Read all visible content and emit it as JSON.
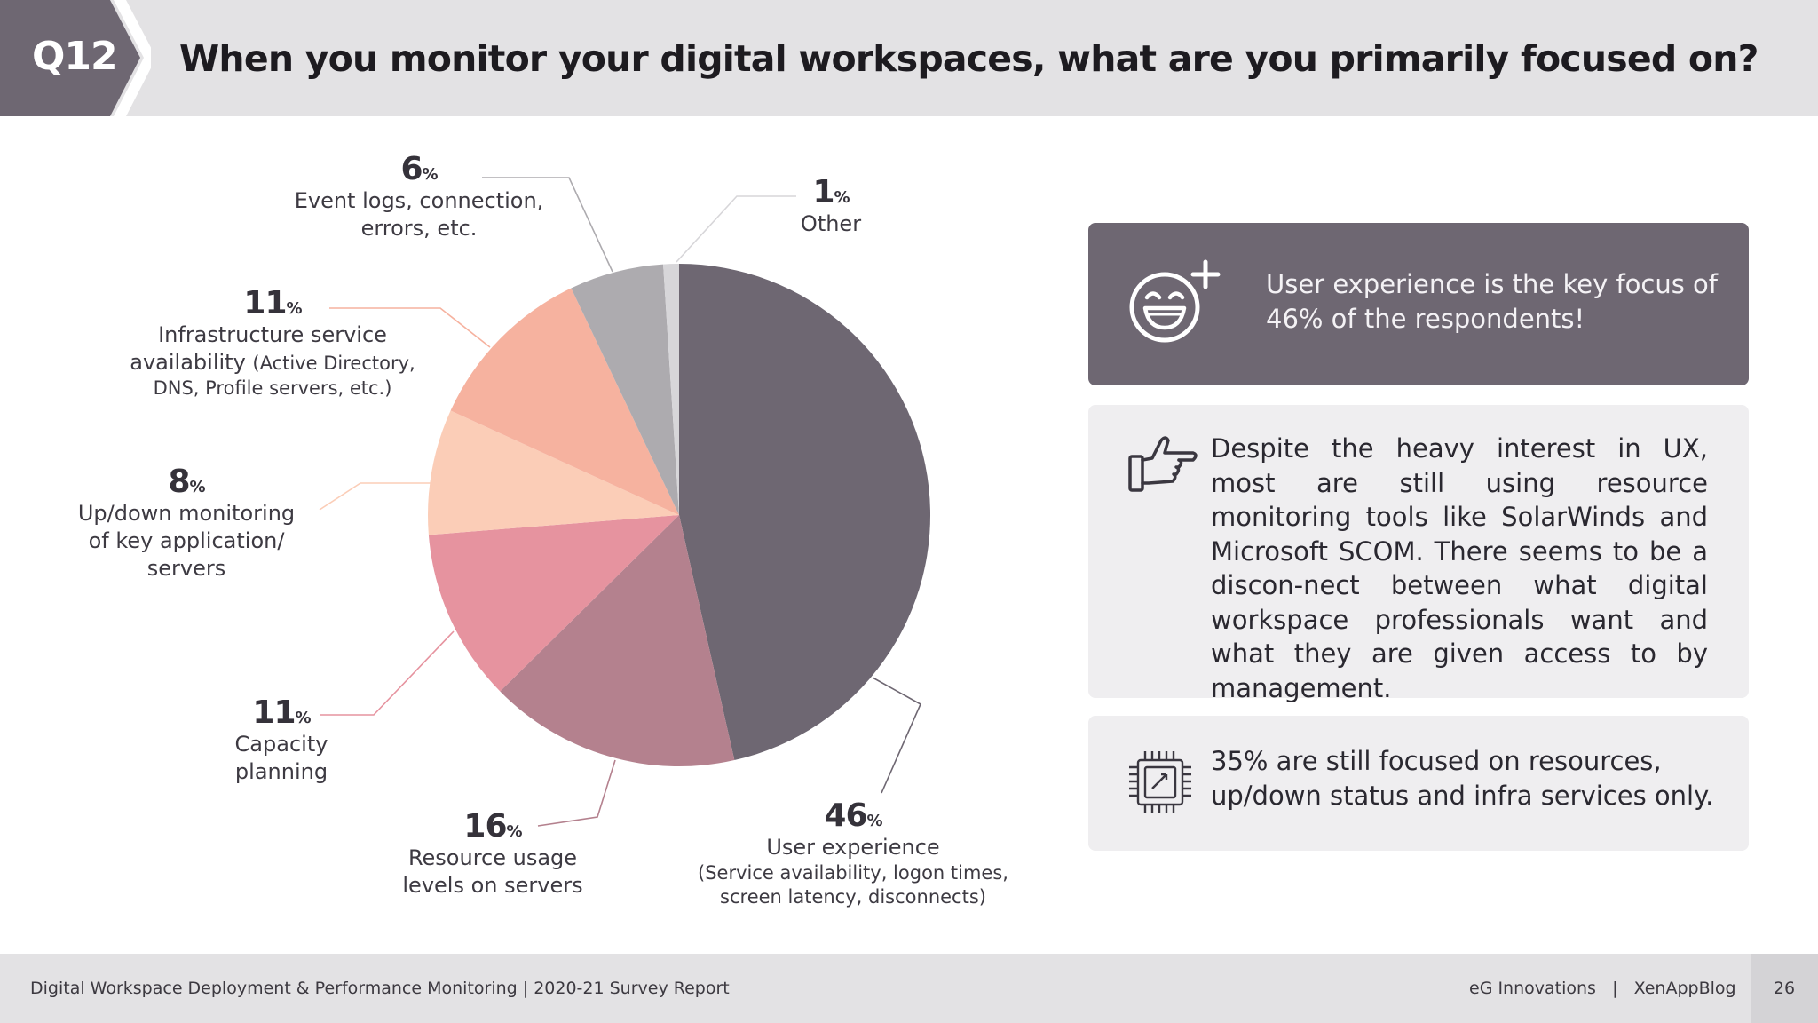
{
  "header": {
    "question": "Q12",
    "title": "When you monitor your digital workspaces, what are you primarily focused on?"
  },
  "chart_data": {
    "type": "pie",
    "title": "When you monitor your digital workspaces, what are you primarily focused on?",
    "unit": "%",
    "slices": [
      {
        "label": "User experience",
        "detail": "(Service availability, logon times, screen latency, disconnects)",
        "value": 46,
        "color": "#6e6772"
      },
      {
        "label": "Resource usage levels on servers",
        "value": 16,
        "color": "#b4818e"
      },
      {
        "label": "Capacity planning",
        "value": 11,
        "color": "#e6939f"
      },
      {
        "label": "Up/down monitoring of key application/ servers",
        "value": 8,
        "color": "#fbcdb7"
      },
      {
        "label": "Infrastructure service availability",
        "detail": "(Active Directory, DNS, Profile servers, etc.)",
        "value": 11,
        "color": "#f6b29f"
      },
      {
        "label": "Event logs, connection, errors, etc.",
        "value": 6,
        "color": "#adabaf"
      },
      {
        "label": "Other",
        "value": 1,
        "color": "#d7d6d9"
      }
    ]
  },
  "labels": {
    "ux": {
      "pct": "46",
      "sym": "%",
      "l1": "User experience",
      "l2": "(Service availability, logon times,",
      "l3": "screen latency, disconnects)"
    },
    "resource": {
      "pct": "16",
      "sym": "%",
      "l1": "Resource usage",
      "l2": "levels on servers"
    },
    "capacity": {
      "pct": "11",
      "sym": "%",
      "l1": "Capacity",
      "l2": "planning"
    },
    "updown": {
      "pct": "8",
      "sym": "%",
      "l1": "Up/down monitoring",
      "l2": "of key application/",
      "l3": "servers"
    },
    "infra": {
      "pct": "11",
      "sym": "%",
      "l1": "Infrastructure service",
      "l2a": "availability",
      "l2b": "(Active Directory,",
      "l3": "DNS, Profile servers, etc.)"
    },
    "event": {
      "pct": "6",
      "sym": "%",
      "l1": "Event logs, connection,",
      "l2": "errors, etc."
    },
    "other": {
      "pct": "1",
      "sym": "%",
      "l1": "Other"
    }
  },
  "panels": {
    "highlight": "User experience is the key focus of 46% of the respondents!",
    "insight": "Despite the heavy interest in UX, most are still using resource monitoring tools like SolarWinds and Microsoft SCOM. There seems to be a discon-nect between what digital workspace professionals want and what they are given access to by management.",
    "resources": "35% are still focused on resources, up/down status and infra services only."
  },
  "footer": {
    "report": "Digital Workspace Deployment & Performance Monitoring | 2020-21 Survey Report",
    "brands": "eG Innovations   |   XenAppBlog",
    "page": "26"
  },
  "icons": {
    "smiley": "smiley-plus-icon",
    "hand": "pointing-hand-icon",
    "chip": "chip-icon"
  },
  "colors": {
    "header_bg": "#e3e2e4",
    "badge": "#6e6772",
    "panel_dark": "#6e6772",
    "panel_light": "#efeef0"
  }
}
